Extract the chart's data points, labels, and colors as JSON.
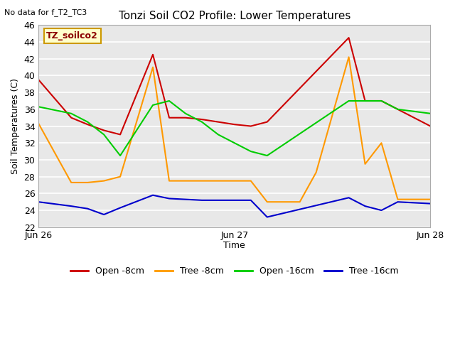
{
  "title": "Tonzi Soil CO2 Profile: Lower Temperatures",
  "top_left_text": "No data for f_T2_TC3",
  "legend_box_text": "TZ_soilco2",
  "ylabel": "Soil Temperatures (C)",
  "xlabel": "Time",
  "ylim": [
    22,
    46
  ],
  "yticks": [
    22,
    24,
    26,
    28,
    30,
    32,
    34,
    36,
    38,
    40,
    42,
    44,
    46
  ],
  "xtick_labels": [
    "Jun 26",
    "Jun 27",
    "Jun 28"
  ],
  "xtick_positions": [
    0,
    12,
    24
  ],
  "xlim": [
    0,
    24
  ],
  "plot_bg_color": "#e8e8e8",
  "fig_bg_color": "#ffffff",
  "series": {
    "open_8cm": {
      "label": "Open -8cm",
      "color": "#cc0000",
      "x": [
        0,
        2,
        3,
        4,
        5,
        7,
        8,
        9,
        10,
        11,
        12,
        13,
        14,
        19,
        20,
        21,
        22,
        24
      ],
      "values": [
        39.5,
        35.0,
        34.2,
        33.5,
        33.0,
        42.5,
        35.0,
        35.0,
        34.8,
        34.5,
        34.2,
        34.0,
        34.5,
        44.5,
        37.0,
        37.0,
        36.0,
        34.0
      ]
    },
    "tree_8cm": {
      "label": "Tree -8cm",
      "color": "#ff9900",
      "x": [
        0,
        2,
        3,
        4,
        5,
        7,
        8,
        9,
        10,
        11,
        12,
        13,
        14,
        16,
        17,
        19,
        20,
        21,
        22,
        24
      ],
      "values": [
        34.3,
        27.3,
        27.3,
        27.5,
        28.0,
        41.0,
        27.5,
        27.5,
        27.5,
        27.5,
        27.5,
        27.5,
        25.0,
        25.0,
        28.5,
        42.2,
        29.5,
        32.0,
        25.3,
        25.3
      ]
    },
    "open_16cm": {
      "label": "Open -16cm",
      "color": "#00cc00",
      "x": [
        0,
        2,
        3,
        4,
        5,
        7,
        8,
        9,
        10,
        11,
        12,
        13,
        14,
        19,
        20,
        21,
        22,
        24
      ],
      "values": [
        36.3,
        35.5,
        34.5,
        33.0,
        30.5,
        36.5,
        37.0,
        35.5,
        34.5,
        33.0,
        32.0,
        31.0,
        30.5,
        37.0,
        37.0,
        37.0,
        36.0,
        35.5
      ]
    },
    "tree_16cm": {
      "label": "Tree -16cm",
      "color": "#0000cc",
      "x": [
        0,
        2,
        3,
        4,
        5,
        7,
        8,
        9,
        10,
        11,
        12,
        13,
        14,
        19,
        20,
        21,
        22,
        24
      ],
      "values": [
        25.0,
        24.5,
        24.2,
        23.5,
        24.3,
        25.8,
        25.4,
        25.3,
        25.2,
        25.2,
        25.2,
        25.2,
        23.2,
        25.5,
        24.5,
        24.0,
        25.0,
        24.8
      ]
    }
  }
}
